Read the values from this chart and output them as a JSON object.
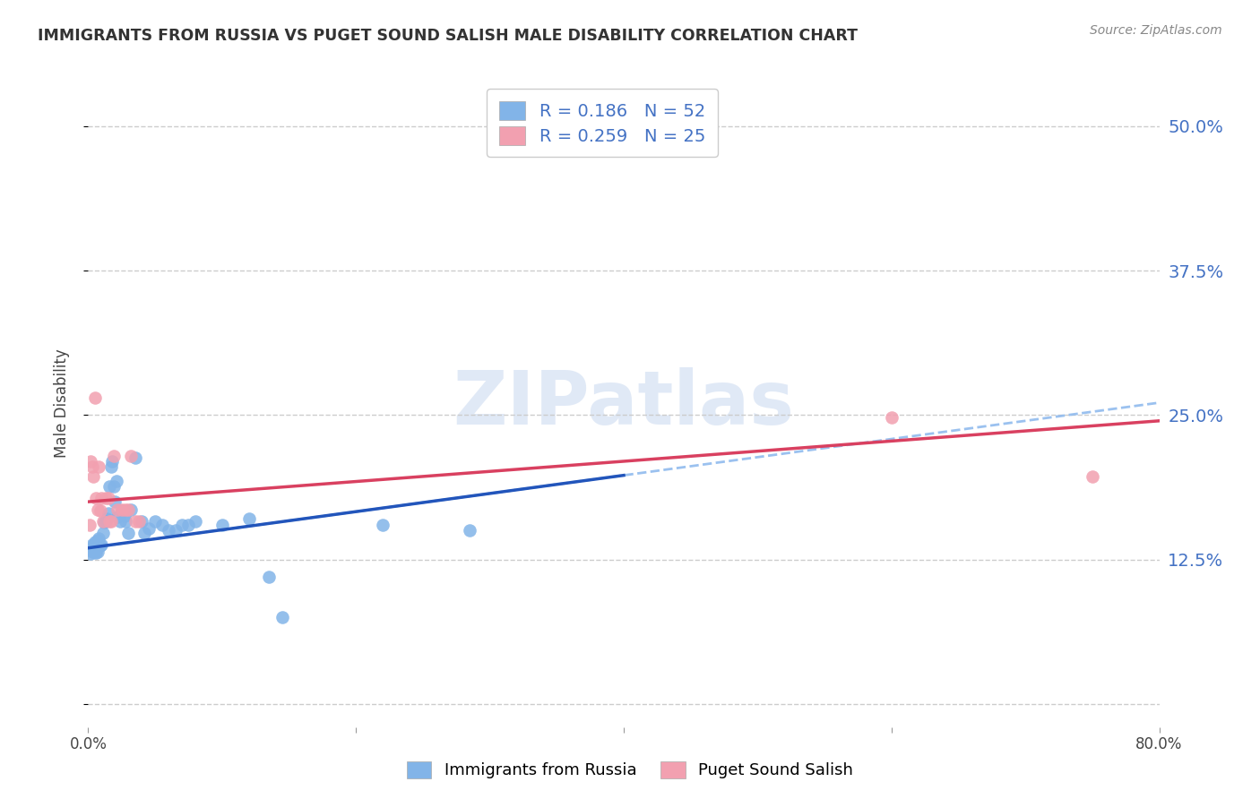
{
  "title": "IMMIGRANTS FROM RUSSIA VS PUGET SOUND SALISH MALE DISABILITY CORRELATION CHART",
  "source": "Source: ZipAtlas.com",
  "ylabel": "Male Disability",
  "xlim": [
    0.0,
    0.8
  ],
  "ylim": [
    -0.02,
    0.54
  ],
  "ytick_vals": [
    0.0,
    0.125,
    0.25,
    0.375,
    0.5
  ],
  "ytick_labels": [
    "",
    "12.5%",
    "25.0%",
    "37.5%",
    "50.0%"
  ],
  "xtick_vals": [
    0.0,
    0.2,
    0.4,
    0.6,
    0.8
  ],
  "xtick_labels": [
    "0.0%",
    "",
    "",
    "",
    "80.0%"
  ],
  "russia_color": "#82B4E8",
  "salish_color": "#F2A0B0",
  "russia_line_color": "#2255BB",
  "salish_line_color": "#D94060",
  "russia_dashed_color": "#90BBEE",
  "russia_R": 0.186,
  "russia_N": 52,
  "salish_R": 0.259,
  "salish_N": 25,
  "russia_x": [
    0.001,
    0.002,
    0.002,
    0.003,
    0.003,
    0.004,
    0.004,
    0.005,
    0.005,
    0.006,
    0.006,
    0.007,
    0.007,
    0.008,
    0.008,
    0.009,
    0.01,
    0.011,
    0.012,
    0.013,
    0.014,
    0.015,
    0.016,
    0.017,
    0.018,
    0.019,
    0.02,
    0.021,
    0.022,
    0.024,
    0.025,
    0.027,
    0.028,
    0.03,
    0.032,
    0.035,
    0.04,
    0.042,
    0.045,
    0.05,
    0.055,
    0.06,
    0.065,
    0.07,
    0.075,
    0.08,
    0.1,
    0.12,
    0.135,
    0.145,
    0.22,
    0.285
  ],
  "russia_y": [
    0.133,
    0.135,
    0.13,
    0.132,
    0.138,
    0.133,
    0.137,
    0.132,
    0.14,
    0.131,
    0.137,
    0.132,
    0.142,
    0.136,
    0.143,
    0.137,
    0.138,
    0.148,
    0.157,
    0.158,
    0.16,
    0.165,
    0.188,
    0.205,
    0.21,
    0.188,
    0.175,
    0.193,
    0.162,
    0.158,
    0.167,
    0.163,
    0.158,
    0.148,
    0.168,
    0.213,
    0.158,
    0.148,
    0.152,
    0.158,
    0.155,
    0.15,
    0.15,
    0.155,
    0.155,
    0.158,
    0.155,
    0.16,
    0.11,
    0.075,
    0.155,
    0.15
  ],
  "salish_x": [
    0.001,
    0.002,
    0.003,
    0.004,
    0.005,
    0.006,
    0.007,
    0.008,
    0.009,
    0.01,
    0.011,
    0.013,
    0.015,
    0.016,
    0.017,
    0.019,
    0.022,
    0.025,
    0.028,
    0.03,
    0.032,
    0.035,
    0.038,
    0.6,
    0.75
  ],
  "salish_y": [
    0.155,
    0.21,
    0.205,
    0.197,
    0.265,
    0.178,
    0.168,
    0.205,
    0.167,
    0.178,
    0.158,
    0.178,
    0.178,
    0.158,
    0.158,
    0.215,
    0.168,
    0.168,
    0.168,
    0.168,
    0.215,
    0.158,
    0.158,
    0.248,
    0.197
  ],
  "background_color": "#FFFFFF",
  "grid_color": "#CCCCCC",
  "watermark": "ZIPatlas",
  "watermark_color": "#C8D8F0"
}
